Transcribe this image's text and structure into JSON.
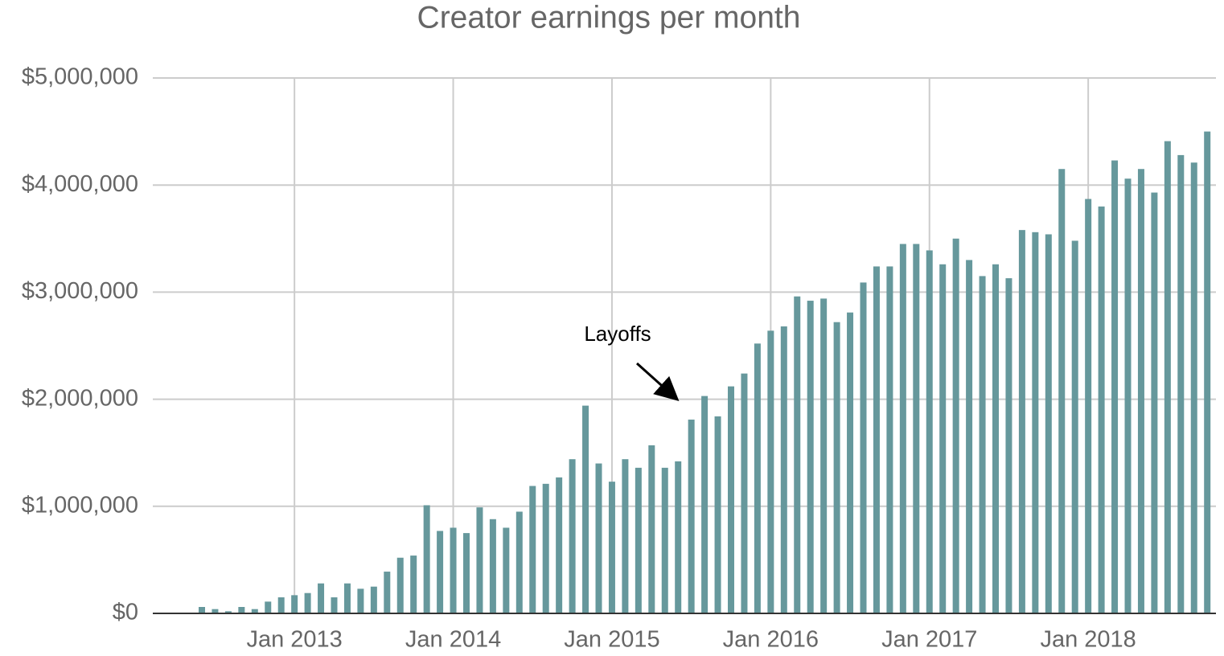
{
  "chart_data": {
    "type": "bar",
    "title": "Creator earnings per month",
    "categories": [
      null,
      null,
      null,
      null,
      null,
      null,
      null,
      "Jan 2013",
      null,
      null,
      null,
      null,
      null,
      null,
      null,
      null,
      null,
      null,
      null,
      "Jan 2014",
      null,
      null,
      null,
      null,
      null,
      null,
      null,
      null,
      null,
      null,
      null,
      "Jan 2015",
      null,
      null,
      null,
      null,
      null,
      null,
      null,
      null,
      null,
      null,
      null,
      "Jan 2016",
      null,
      null,
      null,
      null,
      null,
      null,
      null,
      null,
      null,
      null,
      null,
      "Jan 2017",
      null,
      null,
      null,
      null,
      null,
      null,
      null,
      null,
      null,
      null,
      null,
      "Jan 2018",
      null,
      null,
      null,
      null,
      null,
      null,
      null,
      null,
      null
    ],
    "values": [
      60000,
      40000,
      20000,
      60000,
      40000,
      110000,
      150000,
      170000,
      190000,
      280000,
      150000,
      280000,
      230000,
      250000,
      390000,
      520000,
      540000,
      1010000,
      770000,
      800000,
      750000,
      990000,
      880000,
      800000,
      950000,
      1190000,
      1210000,
      1270000,
      1440000,
      1940000,
      1400000,
      1230000,
      1440000,
      1360000,
      1570000,
      1360000,
      1420000,
      1810000,
      2030000,
      1840000,
      2120000,
      2240000,
      2520000,
      2640000,
      2680000,
      2960000,
      2920000,
      2940000,
      2720000,
      2810000,
      3090000,
      3240000,
      3240000,
      3450000,
      3450000,
      3390000,
      3260000,
      3500000,
      3300000,
      3150000,
      3260000,
      3130000,
      3580000,
      3560000,
      3540000,
      4150000,
      3480000,
      3870000,
      3800000,
      4230000,
      4060000,
      4150000,
      3930000,
      4410000,
      4280000,
      4210000,
      4500000
    ],
    "color": "#66989c",
    "ylim": [
      0,
      5000000
    ],
    "yticks": [
      {
        "value": 0,
        "label": "$0"
      },
      {
        "value": 1000000,
        "label": "$1,000,000"
      },
      {
        "value": 2000000,
        "label": "$2,000,000"
      },
      {
        "value": 3000000,
        "label": "$3,000,000"
      },
      {
        "value": 4000000,
        "label": "$4,000,000"
      },
      {
        "value": 5000000,
        "label": "$5,000,000"
      }
    ],
    "grid": true,
    "annotation": "Layoffs"
  }
}
